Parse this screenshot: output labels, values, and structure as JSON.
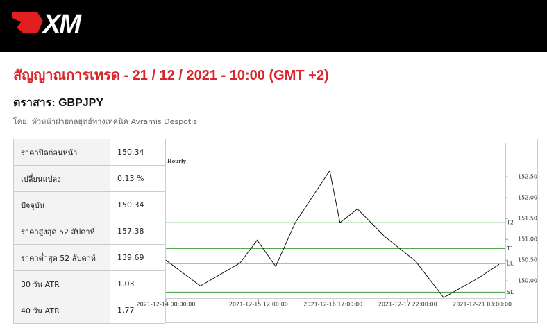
{
  "header": {
    "logo": "XM"
  },
  "title": "สัญญาณการเทรด - 21 / 12 / 2021 - 10:00 (GMT +2)",
  "instrument": "ตราสาร: GBPJPY",
  "byline": "โดย: หัวหน้าฝ่ายกลยุทธ์ทางเทคนิค Avramis Despotis",
  "table": {
    "rows": [
      [
        "ราคาปิดก่อนหน้า",
        "150.34"
      ],
      [
        "เปลี่ยนแปลง",
        "0.13 %"
      ],
      [
        "ปัจจุบัน",
        "150.34"
      ],
      [
        "ราคาสูงสุด 52 สัปดาห์",
        "157.38"
      ],
      [
        "ราคาต่ำสุด 52 สัปดาห์",
        "139.69"
      ],
      [
        "30 วัน ATR",
        "1.03"
      ],
      [
        "40 วัน ATR",
        "1.77"
      ]
    ]
  },
  "chart_data": {
    "type": "line",
    "title": "Hourly",
    "color": "#111111",
    "x": [
      0,
      13.4,
      28.8,
      35.5,
      42.7,
      50.3,
      63.7,
      67.7,
      74.5,
      85,
      97,
      108,
      121.5,
      129.6
    ],
    "values": [
      150.5,
      149.88,
      150.43,
      150.98,
      150.35,
      151.4,
      152.65,
      151.4,
      151.73,
      151.07,
      150.48,
      149.6,
      150.07,
      150.4
    ],
    "xlim": [
      0,
      132
    ],
    "xticks": [
      {
        "value": 0,
        "label": "2021-12-14 00:00:00"
      },
      {
        "value": 36,
        "label": "2021-12-15 12:00:00"
      },
      {
        "value": 65,
        "label": "2021-12-16 17:00:00"
      },
      {
        "value": 94,
        "label": "2021-12-17 22:00:00"
      },
      {
        "value": 123,
        "label": "2021-12-21 03:00:00"
      }
    ],
    "ylim": [
      149.57,
      153.32
    ],
    "yticks": [
      {
        "value": 150,
        "label": "150.00"
      },
      {
        "value": 150.5,
        "label": "150.50"
      },
      {
        "value": 151,
        "label": "151.00"
      },
      {
        "value": 151.5,
        "label": "151.50"
      },
      {
        "value": 152,
        "label": "152.00"
      },
      {
        "value": 152.5,
        "label": "152.50"
      }
    ],
    "levels": [
      {
        "label": "T2",
        "value": 151.4,
        "color": "#3c9a3c"
      },
      {
        "label": "T1",
        "value": 150.78,
        "color": "#3c9a3c"
      },
      {
        "label": "EL",
        "value": 150.42,
        "color": "#d94040"
      },
      {
        "label": "SL",
        "value": 149.73,
        "color": "#3c9a3c"
      }
    ]
  }
}
